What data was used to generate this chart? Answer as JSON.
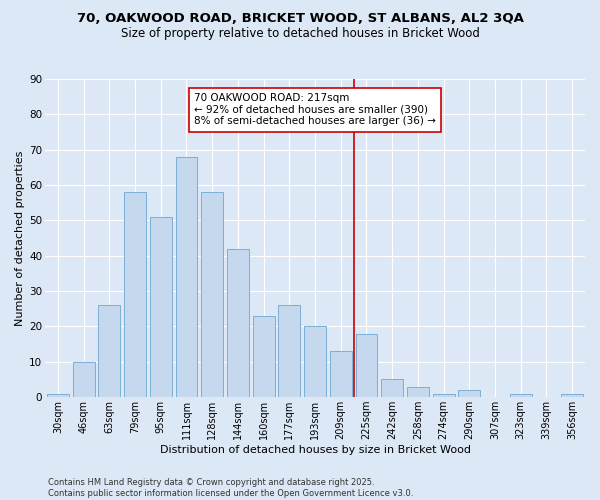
{
  "title_line1": "70, OAKWOOD ROAD, BRICKET WOOD, ST ALBANS, AL2 3QA",
  "title_line2": "Size of property relative to detached houses in Bricket Wood",
  "xlabel": "Distribution of detached houses by size in Bricket Wood",
  "ylabel": "Number of detached properties",
  "categories": [
    "30sqm",
    "46sqm",
    "63sqm",
    "79sqm",
    "95sqm",
    "111sqm",
    "128sqm",
    "144sqm",
    "160sqm",
    "177sqm",
    "193sqm",
    "209sqm",
    "225sqm",
    "242sqm",
    "258sqm",
    "274sqm",
    "290sqm",
    "307sqm",
    "323sqm",
    "339sqm",
    "356sqm"
  ],
  "values": [
    1,
    10,
    26,
    58,
    51,
    68,
    58,
    42,
    23,
    26,
    20,
    13,
    18,
    5,
    3,
    1,
    2,
    0,
    1,
    0,
    1
  ],
  "bar_color": "#c5d8ed",
  "bar_edge_color": "#7bafd4",
  "vline_color": "#cc0000",
  "annotation_text": "70 OAKWOOD ROAD: 217sqm\n← 92% of detached houses are smaller (390)\n8% of semi-detached houses are larger (36) →",
  "annotation_box_color": "#cc0000",
  "ylim": [
    0,
    90
  ],
  "yticks": [
    0,
    10,
    20,
    30,
    40,
    50,
    60,
    70,
    80,
    90
  ],
  "background_color": "#dce8f5",
  "fig_background_color": "#dce8f5",
  "grid_color": "#ffffff",
  "footer_line1": "Contains HM Land Registry data © Crown copyright and database right 2025.",
  "footer_line2": "Contains public sector information licensed under the Open Government Licence v3.0.",
  "title_fontsize": 9.5,
  "subtitle_fontsize": 8.5,
  "axis_label_fontsize": 8,
  "tick_fontsize": 7,
  "annotation_fontsize": 7.5,
  "footer_fontsize": 6
}
